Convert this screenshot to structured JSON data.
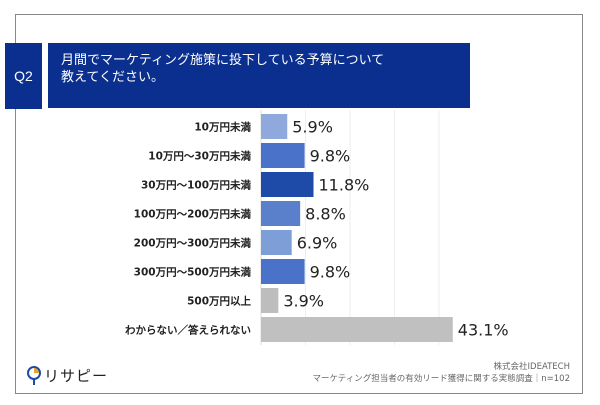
{
  "header": {
    "question_no": "Q2",
    "title_line1": "月間でマーケティング施策に投下している予算について",
    "title_line2": "教えてください。"
  },
  "chart_data": {
    "type": "bar",
    "orientation": "horizontal",
    "categories": [
      "10万円未満",
      "10万円〜30万円未満",
      "30万円〜100万円未満",
      "100万円〜200万円未満",
      "200万円〜300万円未満",
      "300万円〜500万円未満",
      "500万円以上",
      "わからない／答えられない"
    ],
    "values": [
      5.9,
      9.8,
      11.8,
      8.8,
      6.9,
      9.8,
      3.9,
      43.1
    ],
    "value_labels": [
      "5.9%",
      "9.8%",
      "11.8%",
      "8.8%",
      "6.9%",
      "9.8%",
      "3.9%",
      "43.1%"
    ],
    "colors": [
      "#8fa9dc",
      "#4a72c8",
      "#1e4aa8",
      "#5a80cc",
      "#7e9ed8",
      "#4a72c8",
      "#bdbdbd",
      "#c0c0c0"
    ],
    "xlim": [
      0,
      45
    ],
    "grid": true
  },
  "footer": {
    "logo_text": "リサピー",
    "company": "株式会社IDEATECH",
    "survey": "マーケティング担当者の有効リード獲得に関する実態調査｜n=102"
  }
}
